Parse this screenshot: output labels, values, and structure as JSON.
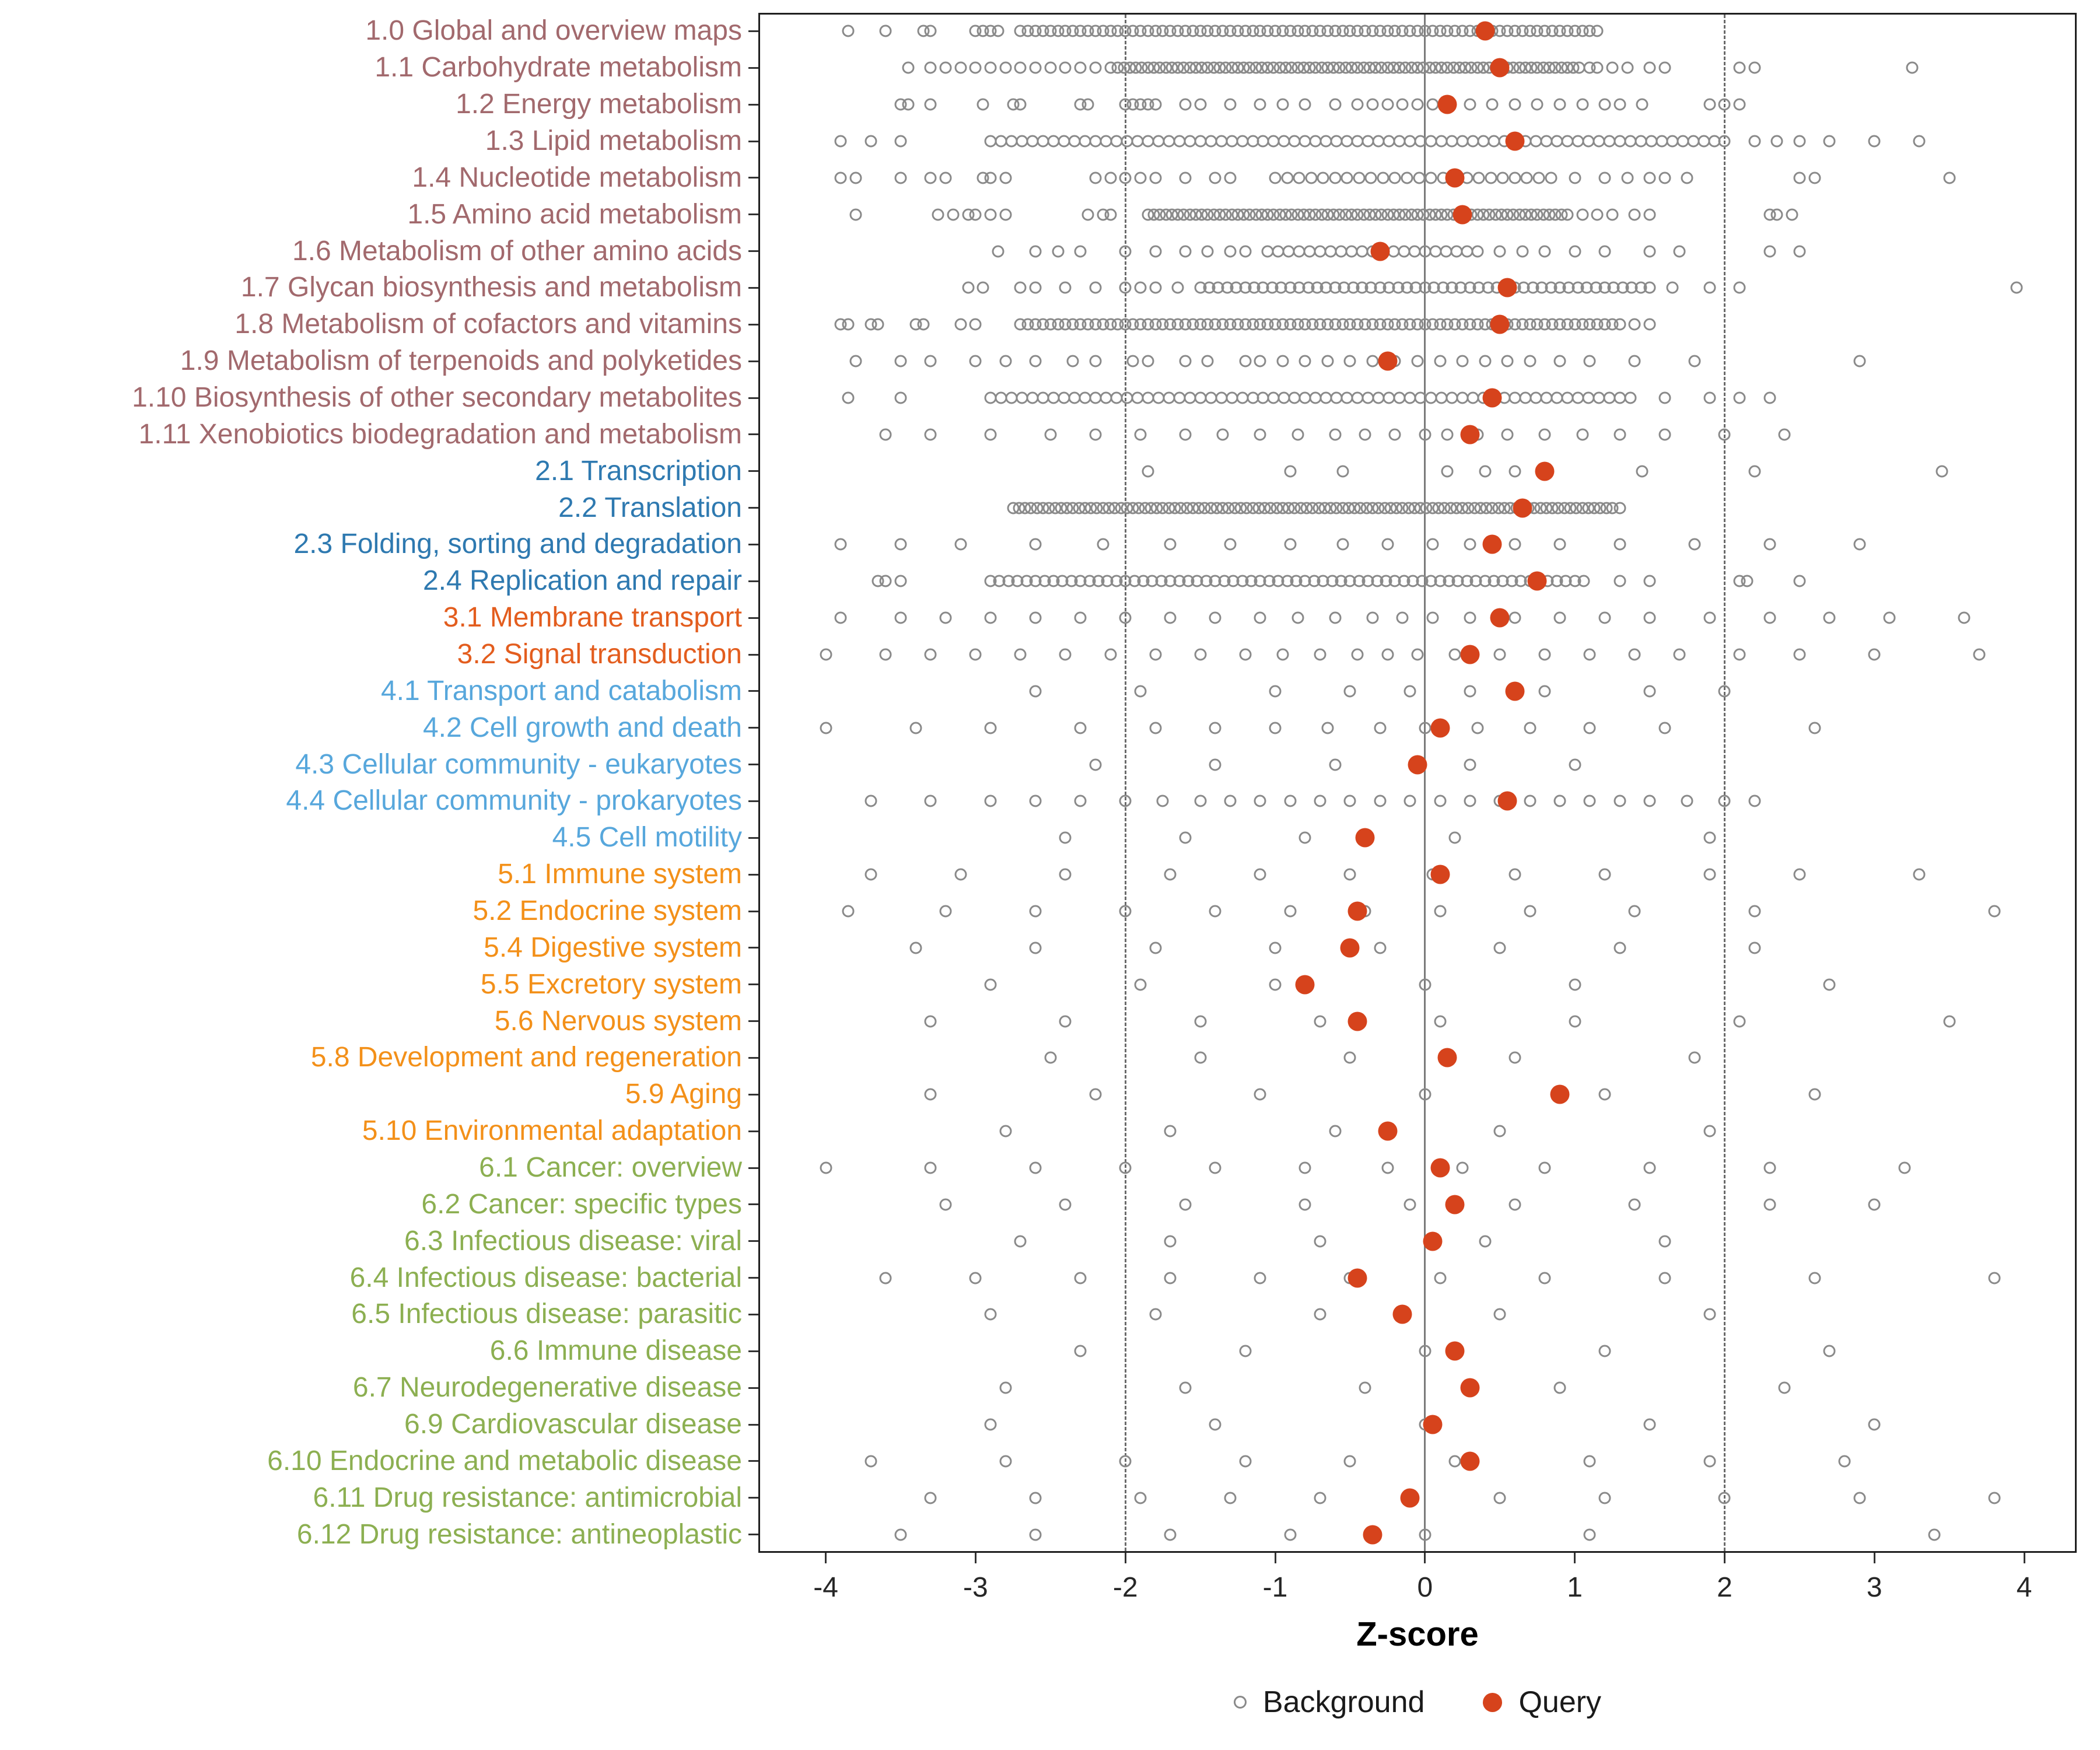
{
  "chart_data": {
    "type": "scatter",
    "title": "",
    "xlabel": "Z-score",
    "ylabel": "",
    "x_ticks": [
      -4,
      -3,
      -2,
      -1,
      0,
      1,
      2,
      3,
      4
    ],
    "xlim": [
      -4.45,
      4.35
    ],
    "grid": false,
    "legend_position": "bottom",
    "reference_lines": {
      "solid": [
        0
      ],
      "dashed": [
        -2,
        2
      ]
    },
    "legend": [
      {
        "label": "Background",
        "marker": "open-circle",
        "color": "#8a8a8a"
      },
      {
        "label": "Query",
        "marker": "filled-circle",
        "color": "#d6431c"
      }
    ],
    "colors": {
      "background": "#8a8a8a",
      "query": "#d6431c"
    },
    "group_colors": {
      "1": "#a2696d",
      "2": "#2e79b0",
      "3": "#e35d1e",
      "4": "#57a7dc",
      "5": "#f39019",
      "6": "#8caf51"
    },
    "categories": [
      {
        "label": "1.0 Global and overview maps",
        "group": 1,
        "query": 0.4,
        "band": [
          -2.7,
          1.15,
          0.05
        ],
        "bg": [
          -3.85,
          -3.6,
          -3.35,
          -3.3,
          -3.0,
          -2.95,
          -2.9,
          -2.85
        ]
      },
      {
        "label": "1.1 Carbohydrate metabolism",
        "group": 1,
        "query": 0.5,
        "band": [
          -2.05,
          1.05,
          0.04
        ],
        "bg": [
          -3.45,
          -3.3,
          -3.2,
          -3.1,
          -3.0,
          -2.9,
          -2.8,
          -2.7,
          -2.6,
          -2.5,
          -2.4,
          -2.3,
          -2.2,
          -2.1,
          1.1,
          1.15,
          1.25,
          1.35,
          1.5,
          1.6,
          2.1,
          2.2,
          3.25
        ]
      },
      {
        "label": "1.2 Energy metabolism",
        "group": 1,
        "query": 0.15,
        "bg": [
          -3.5,
          -3.45,
          -3.3,
          -2.95,
          -2.75,
          -2.7,
          -2.3,
          -2.25,
          -2.0,
          -1.95,
          -1.9,
          -1.85,
          -1.8,
          -1.6,
          -1.5,
          -1.3,
          -1.1,
          -0.95,
          -0.8,
          -0.6,
          -0.45,
          -0.35,
          -0.25,
          -0.15,
          -0.05,
          0.05,
          0.3,
          0.45,
          0.6,
          0.75,
          0.9,
          1.05,
          1.2,
          1.3,
          1.45,
          1.9,
          2.0,
          2.1
        ]
      },
      {
        "label": "1.3 Lipid metabolism",
        "group": 1,
        "query": 0.6,
        "band": [
          -2.9,
          2.05,
          0.07
        ],
        "bg": [
          -3.9,
          -3.7,
          -3.5,
          2.2,
          2.35,
          2.5,
          2.7,
          3.0,
          3.3
        ]
      },
      {
        "label": "1.4 Nucleotide metabolism",
        "group": 1,
        "query": 0.2,
        "band": [
          -1.0,
          0.85,
          0.08
        ],
        "bg": [
          -3.9,
          -3.8,
          -3.5,
          -3.3,
          -3.2,
          -2.95,
          -2.9,
          -2.8,
          -2.2,
          -2.1,
          -2.0,
          -1.9,
          -1.8,
          -1.6,
          -1.4,
          -1.3,
          1.0,
          1.2,
          1.35,
          1.5,
          1.6,
          1.75,
          2.5,
          2.6,
          3.5
        ]
      },
      {
        "label": "1.5 Amino acid metabolism",
        "group": 1,
        "query": 0.25,
        "band": [
          -1.85,
          0.95,
          0.04
        ],
        "bg": [
          -3.8,
          -3.25,
          -3.15,
          -3.05,
          -3.0,
          -2.9,
          -2.8,
          -2.25,
          -2.15,
          -2.1,
          1.05,
          1.15,
          1.25,
          1.4,
          1.5,
          2.3,
          2.35,
          2.45
        ]
      },
      {
        "label": "1.6 Metabolism of other amino acids",
        "group": 1,
        "query": -0.3,
        "band": [
          -1.05,
          0.35,
          0.07
        ],
        "bg": [
          -2.85,
          -2.6,
          -2.45,
          -2.3,
          -2.0,
          -1.8,
          -1.6,
          -1.45,
          -1.3,
          -1.2,
          0.5,
          0.65,
          0.8,
          1.0,
          1.2,
          1.5,
          1.7,
          2.3,
          2.5
        ]
      },
      {
        "label": "1.7 Glycan biosynthesis and metabolism",
        "group": 1,
        "query": 0.55,
        "band": [
          -1.5,
          1.5,
          0.06
        ],
        "bg": [
          -3.05,
          -2.95,
          -2.7,
          -2.6,
          -2.4,
          -2.2,
          -2.0,
          -1.9,
          -1.8,
          -1.65,
          1.65,
          1.9,
          2.1,
          3.95
        ]
      },
      {
        "label": "1.8 Metabolism of cofactors and vitamins",
        "group": 1,
        "query": 0.5,
        "band": [
          -2.7,
          1.3,
          0.05
        ],
        "bg": [
          -3.9,
          -3.85,
          -3.7,
          -3.65,
          -3.4,
          -3.35,
          -3.1,
          -3.0,
          1.4,
          1.5
        ]
      },
      {
        "label": "1.9 Metabolism of terpenoids and polyketides",
        "group": 1,
        "query": -0.25,
        "bg": [
          -3.8,
          -3.5,
          -3.3,
          -3.0,
          -2.8,
          -2.6,
          -2.35,
          -2.2,
          -1.95,
          -1.85,
          -1.6,
          -1.45,
          -1.2,
          -1.1,
          -0.95,
          -0.8,
          -0.65,
          -0.5,
          -0.35,
          -0.2,
          -0.05,
          0.1,
          0.25,
          0.4,
          0.55,
          0.7,
          0.9,
          1.1,
          1.4,
          1.8,
          2.9
        ]
      },
      {
        "label": "1.10 Biosynthesis of other secondary metabolites",
        "group": 1,
        "query": 0.45,
        "band": [
          -2.9,
          1.4,
          0.07
        ],
        "bg": [
          -3.85,
          -3.5,
          1.6,
          1.9,
          2.1,
          2.3
        ]
      },
      {
        "label": "1.11 Xenobiotics biodegradation and metabolism",
        "group": 1,
        "query": 0.3,
        "bg": [
          -3.6,
          -3.3,
          -2.9,
          -2.5,
          -2.2,
          -1.9,
          -1.6,
          -1.35,
          -1.1,
          -0.85,
          -0.6,
          -0.4,
          -0.2,
          0.0,
          0.15,
          0.35,
          0.55,
          0.8,
          1.05,
          1.3,
          1.6,
          2.0,
          2.4
        ]
      },
      {
        "label": "2.1 Transcription",
        "group": 2,
        "query": 0.8,
        "bg": [
          -1.85,
          -0.9,
          -0.55,
          0.15,
          0.4,
          0.6,
          1.45,
          2.2,
          3.45
        ]
      },
      {
        "label": "2.2 Translation",
        "group": 2,
        "query": 0.65,
        "band": [
          -2.75,
          1.25,
          0.04
        ],
        "bg": [
          1.3
        ]
      },
      {
        "label": "2.3 Folding, sorting and degradation",
        "group": 2,
        "query": 0.45,
        "bg": [
          -3.9,
          -3.5,
          -3.1,
          -2.6,
          -2.15,
          -1.7,
          -1.3,
          -0.9,
          -0.55,
          -0.25,
          0.05,
          0.3,
          0.6,
          0.9,
          1.3,
          1.8,
          2.3,
          2.9
        ]
      },
      {
        "label": "2.4 Replication and repair",
        "group": 2,
        "query": 0.75,
        "band": [
          -2.9,
          1.1,
          0.06
        ],
        "bg": [
          -3.65,
          -3.6,
          -3.5,
          1.3,
          1.5,
          2.1,
          2.15,
          2.5
        ]
      },
      {
        "label": "3.1 Membrane transport",
        "group": 3,
        "query": 0.5,
        "bg": [
          -3.9,
          -3.5,
          -3.2,
          -2.9,
          -2.6,
          -2.3,
          -2.0,
          -1.7,
          -1.4,
          -1.1,
          -0.85,
          -0.6,
          -0.35,
          -0.15,
          0.05,
          0.3,
          0.6,
          0.9,
          1.2,
          1.5,
          1.9,
          2.3,
          2.7,
          3.1,
          3.6
        ]
      },
      {
        "label": "3.2 Signal transduction",
        "group": 3,
        "query": 0.3,
        "bg": [
          -4.0,
          -3.6,
          -3.3,
          -3.0,
          -2.7,
          -2.4,
          -2.1,
          -1.8,
          -1.5,
          -1.2,
          -0.95,
          -0.7,
          -0.45,
          -0.25,
          -0.05,
          0.2,
          0.5,
          0.8,
          1.1,
          1.4,
          1.7,
          2.1,
          2.5,
          3.0,
          3.7
        ]
      },
      {
        "label": "4.1 Transport and catabolism",
        "group": 4,
        "query": 0.6,
        "bg": [
          -2.6,
          -1.9,
          -1.0,
          -0.5,
          -0.1,
          0.3,
          0.8,
          1.5,
          2.0
        ]
      },
      {
        "label": "4.2 Cell growth and death",
        "group": 4,
        "query": 0.1,
        "bg": [
          -4.0,
          -3.4,
          -2.9,
          -2.3,
          -1.8,
          -1.4,
          -1.0,
          -0.65,
          -0.3,
          0.0,
          0.35,
          0.7,
          1.1,
          1.6,
          2.6
        ]
      },
      {
        "label": "4.3 Cellular community - eukaryotes",
        "group": 4,
        "query": -0.05,
        "bg": [
          -2.2,
          -1.4,
          -0.6,
          0.3,
          1.0
        ]
      },
      {
        "label": "4.4 Cellular community - prokaryotes",
        "group": 4,
        "query": 0.55,
        "bg": [
          -3.7,
          -3.3,
          -2.9,
          -2.6,
          -2.3,
          -2.0,
          -1.75,
          -1.5,
          -1.3,
          -1.1,
          -0.9,
          -0.7,
          -0.5,
          -0.3,
          -0.1,
          0.1,
          0.3,
          0.5,
          0.7,
          0.9,
          1.1,
          1.3,
          1.5,
          1.75,
          2.0,
          2.2
        ]
      },
      {
        "label": "4.5 Cell motility",
        "group": 4,
        "query": -0.4,
        "bg": [
          -2.4,
          -1.6,
          -0.8,
          0.2,
          1.9
        ]
      },
      {
        "label": "5.1 Immune system",
        "group": 5,
        "query": 0.1,
        "bg": [
          -3.7,
          -3.1,
          -2.4,
          -1.7,
          -1.1,
          -0.5,
          0.05,
          0.6,
          1.2,
          1.9,
          2.5,
          3.3
        ]
      },
      {
        "label": "5.2 Endocrine system",
        "group": 5,
        "query": -0.45,
        "bg": [
          -3.85,
          -3.2,
          -2.6,
          -2.0,
          -1.4,
          -0.9,
          -0.4,
          0.1,
          0.7,
          1.4,
          2.2,
          3.8
        ]
      },
      {
        "label": "5.4 Digestive system",
        "group": 5,
        "query": -0.5,
        "bg": [
          -3.4,
          -2.6,
          -1.8,
          -1.0,
          -0.3,
          0.5,
          1.3,
          2.2
        ]
      },
      {
        "label": "5.5 Excretory system",
        "group": 5,
        "query": -0.8,
        "bg": [
          -2.9,
          -1.9,
          -1.0,
          0.0,
          1.0,
          2.7
        ]
      },
      {
        "label": "5.6 Nervous system",
        "group": 5,
        "query": -0.45,
        "bg": [
          -3.3,
          -2.4,
          -1.5,
          -0.7,
          0.1,
          1.0,
          2.1,
          3.5
        ]
      },
      {
        "label": "5.8 Development and regeneration",
        "group": 5,
        "query": 0.15,
        "bg": [
          -2.5,
          -1.5,
          -0.5,
          0.6,
          1.8
        ]
      },
      {
        "label": "5.9 Aging",
        "group": 5,
        "query": 0.9,
        "bg": [
          -3.3,
          -2.2,
          -1.1,
          0.0,
          1.2,
          2.6
        ]
      },
      {
        "label": "5.10 Environmental adaptation",
        "group": 5,
        "query": -0.25,
        "bg": [
          -2.8,
          -1.7,
          -0.6,
          0.5,
          1.9
        ]
      },
      {
        "label": "6.1 Cancer: overview",
        "group": 6,
        "query": 0.1,
        "bg": [
          -4.0,
          -3.3,
          -2.6,
          -2.0,
          -1.4,
          -0.8,
          -0.25,
          0.25,
          0.8,
          1.5,
          2.3,
          3.2
        ]
      },
      {
        "label": "6.2 Cancer: specific types",
        "group": 6,
        "query": 0.2,
        "bg": [
          -3.2,
          -2.4,
          -1.6,
          -0.8,
          -0.1,
          0.6,
          1.4,
          2.3,
          3.0
        ]
      },
      {
        "label": "6.3 Infectious disease: viral",
        "group": 6,
        "query": 0.05,
        "bg": [
          -2.7,
          -1.7,
          -0.7,
          0.4,
          1.6
        ]
      },
      {
        "label": "6.4 Infectious disease: bacterial",
        "group": 6,
        "query": -0.45,
        "bg": [
          -3.6,
          -3.0,
          -2.3,
          -1.7,
          -1.1,
          -0.5,
          0.1,
          0.8,
          1.6,
          2.6,
          3.8
        ]
      },
      {
        "label": "6.5 Infectious disease: parasitic",
        "group": 6,
        "query": -0.15,
        "bg": [
          -2.9,
          -1.8,
          -0.7,
          0.5,
          1.9
        ]
      },
      {
        "label": "6.6 Immune disease",
        "group": 6,
        "query": 0.2,
        "bg": [
          -2.3,
          -1.2,
          0.0,
          1.2,
          2.7
        ]
      },
      {
        "label": "6.7 Neurodegenerative disease",
        "group": 6,
        "query": 0.3,
        "bg": [
          -2.8,
          -1.6,
          -0.4,
          0.9,
          2.4
        ]
      },
      {
        "label": "6.9 Cardiovascular disease",
        "group": 6,
        "query": 0.05,
        "bg": [
          -2.9,
          -1.4,
          0.0,
          1.5,
          3.0
        ]
      },
      {
        "label": "6.10 Endocrine and metabolic disease",
        "group": 6,
        "query": 0.3,
        "bg": [
          -3.7,
          -2.8,
          -2.0,
          -1.2,
          -0.5,
          0.2,
          1.1,
          1.9,
          2.8
        ]
      },
      {
        "label": "6.11 Drug resistance: antimicrobial",
        "group": 6,
        "query": -0.1,
        "bg": [
          -3.3,
          -2.6,
          -1.9,
          -1.3,
          -0.7,
          -0.1,
          0.5,
          1.2,
          2.0,
          2.9,
          3.8
        ]
      },
      {
        "label": "6.12 Drug resistance: antineoplastic",
        "group": 6,
        "query": -0.35,
        "bg": [
          -3.5,
          -2.6,
          -1.7,
          -0.9,
          0.0,
          1.1,
          3.4
        ]
      }
    ]
  }
}
